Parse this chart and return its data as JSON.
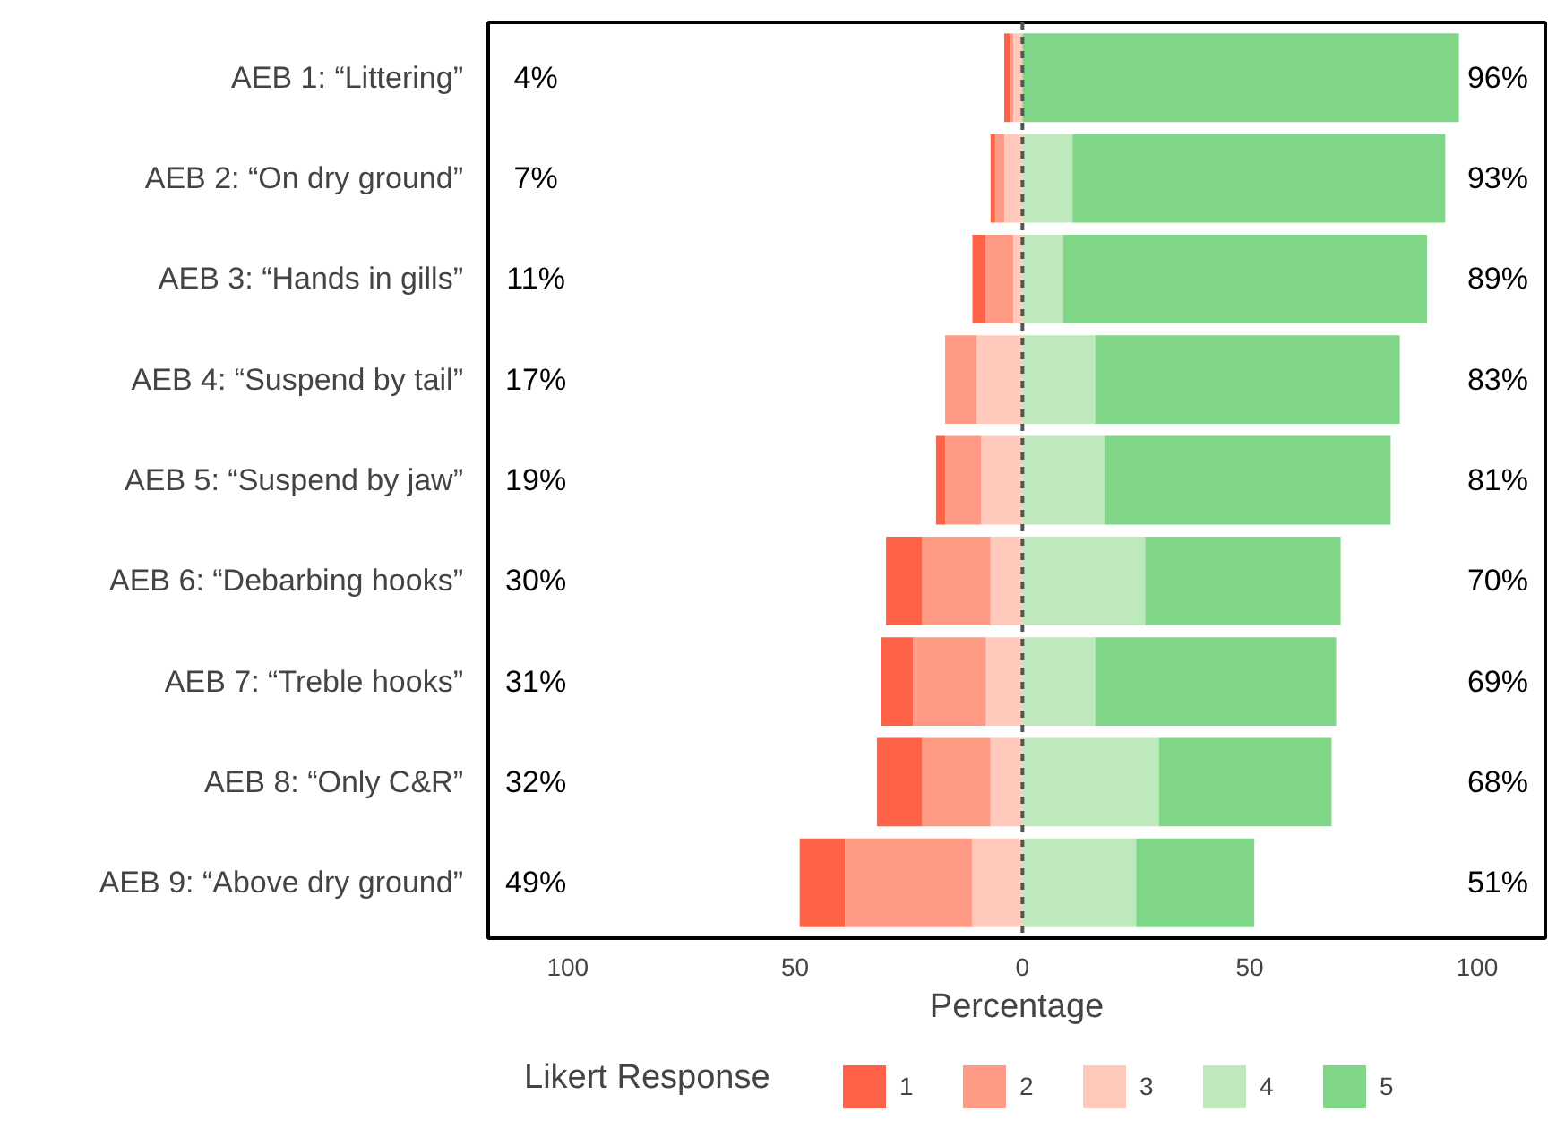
{
  "chart_data": {
    "type": "bar",
    "orientation": "horizontal",
    "xlabel": "Percentage",
    "legend_title": "Likert Response",
    "legend": "bottom",
    "categories": [
      "AEB 1: “Littering”",
      "AEB 2: “On dry ground”",
      "AEB 3: “Hands in gills”",
      "AEB 4: “Suspend by tail”",
      "AEB 5: “Suspend by jaw”",
      "AEB 6: “Debarbing hooks”",
      "AEB 7: “Treble hooks”",
      "AEB 8: “Only C&R”",
      "AEB 9: “Above dry ground”"
    ],
    "series": [
      {
        "name": "1",
        "color": "#ff6347",
        "values": [
          1.5,
          1,
          3,
          null,
          2,
          8,
          7,
          10,
          10
        ],
        "base": [
          -4,
          -7,
          -11,
          null,
          -19,
          -30,
          -31,
          -32,
          -49
        ]
      },
      {
        "name": "2",
        "color": "#ff9a85",
        "values": [
          0.5,
          2,
          6,
          7,
          8,
          15,
          16,
          15,
          28
        ],
        "base": [
          -2.5,
          -6,
          -8,
          -17,
          -17,
          -22,
          -24,
          -22,
          -39
        ]
      },
      {
        "name": "3",
        "color": "#ffc9bb",
        "values": [
          2,
          4,
          2,
          10,
          9,
          7,
          8,
          7,
          11
        ],
        "base": [
          -2,
          -4,
          -2,
          -10,
          -9,
          -7,
          -8,
          -7,
          -11
        ]
      },
      {
        "name": "4",
        "color": "#bde9bc",
        "values": [
          null,
          11,
          9,
          16,
          18,
          27,
          16,
          30,
          25
        ],
        "base": [
          null,
          0,
          0,
          0,
          0,
          0,
          0,
          0,
          0
        ]
      },
      {
        "name": "5",
        "color": "#7fd686",
        "values": [
          96,
          82,
          80,
          67,
          63,
          43,
          53,
          38,
          26
        ],
        "base": [
          0,
          11,
          9,
          16,
          18,
          27,
          16,
          30,
          25
        ]
      }
    ],
    "xlim": [
      -117.5,
      115
    ],
    "xticks": [
      {
        "value": -100,
        "label": "100"
      },
      {
        "value": -50,
        "label": "50"
      },
      0,
      50,
      100
    ],
    "ref_lines": [
      {
        "axis": "x",
        "value": 0,
        "color": "#555555",
        "line_style": "dashed"
      }
    ],
    "annotations": [
      "4%",
      "96%",
      "7%",
      "93%",
      "11%",
      "89%",
      "17%",
      "83%",
      "19%",
      "81%",
      "30%",
      "70%",
      "31%",
      "69%",
      "32%",
      "68%",
      "49%",
      "51%"
    ]
  }
}
